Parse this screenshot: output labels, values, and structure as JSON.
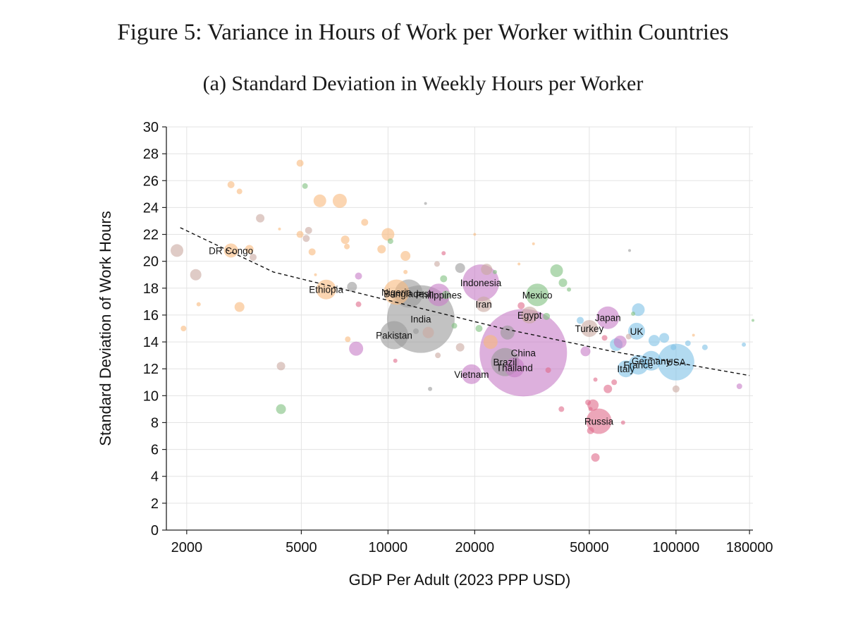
{
  "figure": {
    "title": "Figure 5: Variance in Hours of Work per Worker within Countries",
    "subtitle": "(a) Standard Deviation in Weekly Hours per Worker"
  },
  "colors": {
    "orange": "#f8b97d",
    "green": "#7fbf7f",
    "gray": "#999999",
    "purple": "#c77cc7",
    "pink": "#e06b8b",
    "blue": "#7fc1e6",
    "tan": "#c9a9a0"
  },
  "chart_data": {
    "type": "scatter",
    "xscale": "log",
    "xlabel": "GDP Per Adult (2023 PPP USD)",
    "ylabel": "Standard Deviation of Work Hours",
    "xlim": [
      1700,
      185000
    ],
    "ylim": [
      0,
      30
    ],
    "xticks": [
      2000,
      5000,
      10000,
      20000,
      50000,
      100000,
      180000
    ],
    "yticks": [
      0,
      2,
      4,
      6,
      8,
      10,
      12,
      14,
      16,
      18,
      20,
      22,
      24,
      26,
      28,
      30
    ],
    "grid": true,
    "trendline": {
      "style": "dashed",
      "points": [
        [
          1900,
          22.5
        ],
        [
          4000,
          19.2
        ],
        [
          10000,
          17.1
        ],
        [
          25000,
          15.0
        ],
        [
          60000,
          13.3
        ],
        [
          180000,
          11.5
        ]
      ]
    },
    "points": [
      {
        "x": 2850,
        "y": 20.8,
        "size": 10,
        "color": "orange",
        "label": "DR Congo"
      },
      {
        "x": 6100,
        "y": 17.9,
        "size": 14,
        "color": "orange",
        "label": "Ethiopia"
      },
      {
        "x": 10700,
        "y": 17.7,
        "size": 18,
        "color": "orange",
        "label": "Nigeria"
      },
      {
        "x": 11800,
        "y": 17.6,
        "size": 20,
        "color": "gray",
        "label": "Bangladesh"
      },
      {
        "x": 15000,
        "y": 17.5,
        "size": 16,
        "color": "purple",
        "label": "Philippines"
      },
      {
        "x": 21000,
        "y": 18.4,
        "size": 26,
        "color": "purple",
        "label": "Indonesia"
      },
      {
        "x": 21500,
        "y": 16.8,
        "size": 11,
        "color": "tan",
        "label": "Iran"
      },
      {
        "x": 13000,
        "y": 15.7,
        "size": 48,
        "color": "gray",
        "label": "India"
      },
      {
        "x": 10500,
        "y": 14.5,
        "size": 20,
        "color": "gray",
        "label": "Pakistan"
      },
      {
        "x": 19500,
        "y": 11.6,
        "size": 14,
        "color": "purple",
        "label": "Vietnam"
      },
      {
        "x": 29500,
        "y": 13.2,
        "size": 62,
        "color": "purple",
        "label": "China"
      },
      {
        "x": 25500,
        "y": 12.5,
        "size": 20,
        "color": "gray",
        "label": "Brazil"
      },
      {
        "x": 27500,
        "y": 12.1,
        "size": 14,
        "color": "purple",
        "label": "Thailand"
      },
      {
        "x": 33000,
        "y": 17.5,
        "size": 16,
        "color": "green",
        "label": "Mexico"
      },
      {
        "x": 31000,
        "y": 16.0,
        "size": 12,
        "color": "tan",
        "label": "Egypt"
      },
      {
        "x": 50000,
        "y": 15.0,
        "size": 12,
        "color": "tan",
        "label": "Turkey"
      },
      {
        "x": 58000,
        "y": 15.8,
        "size": 16,
        "color": "purple",
        "label": "Japan"
      },
      {
        "x": 73000,
        "y": 14.8,
        "size": 12,
        "color": "blue",
        "label": "UK"
      },
      {
        "x": 54000,
        "y": 8.1,
        "size": 18,
        "color": "pink",
        "label": "Russia"
      },
      {
        "x": 67000,
        "y": 12.0,
        "size": 12,
        "color": "blue",
        "label": "Italy"
      },
      {
        "x": 74000,
        "y": 12.3,
        "size": 14,
        "color": "blue",
        "label": "France"
      },
      {
        "x": 82000,
        "y": 12.6,
        "size": 14,
        "color": "blue",
        "label": "Germany"
      },
      {
        "x": 100000,
        "y": 12.5,
        "size": 26,
        "color": "blue",
        "label": "USA"
      },
      {
        "x": 1850,
        "y": 20.8,
        "size": 9,
        "color": "tan"
      },
      {
        "x": 2150,
        "y": 19.0,
        "size": 8,
        "color": "tan"
      },
      {
        "x": 2200,
        "y": 16.8,
        "size": 3,
        "color": "orange"
      },
      {
        "x": 1950,
        "y": 15.0,
        "size": 4,
        "color": "orange"
      },
      {
        "x": 2850,
        "y": 25.7,
        "size": 5,
        "color": "orange"
      },
      {
        "x": 3050,
        "y": 25.2,
        "size": 4,
        "color": "orange"
      },
      {
        "x": 3600,
        "y": 23.2,
        "size": 6,
        "color": "tan"
      },
      {
        "x": 3300,
        "y": 20.9,
        "size": 6,
        "color": "orange"
      },
      {
        "x": 3400,
        "y": 20.3,
        "size": 5,
        "color": "tan"
      },
      {
        "x": 3050,
        "y": 16.6,
        "size": 7,
        "color": "orange"
      },
      {
        "x": 4200,
        "y": 22.4,
        "size": 2,
        "color": "orange"
      },
      {
        "x": 4250,
        "y": 12.2,
        "size": 6,
        "color": "tan"
      },
      {
        "x": 4250,
        "y": 9.0,
        "size": 7,
        "color": "green"
      },
      {
        "x": 4950,
        "y": 27.3,
        "size": 5,
        "color": "orange"
      },
      {
        "x": 5150,
        "y": 25.6,
        "size": 4,
        "color": "green"
      },
      {
        "x": 5800,
        "y": 24.5,
        "size": 9,
        "color": "orange"
      },
      {
        "x": 6800,
        "y": 24.5,
        "size": 10,
        "color": "orange"
      },
      {
        "x": 4950,
        "y": 22.0,
        "size": 5,
        "color": "orange"
      },
      {
        "x": 5300,
        "y": 22.3,
        "size": 5,
        "color": "tan"
      },
      {
        "x": 5200,
        "y": 21.7,
        "size": 5,
        "color": "tan"
      },
      {
        "x": 5450,
        "y": 20.7,
        "size": 5,
        "color": "orange"
      },
      {
        "x": 5600,
        "y": 19.0,
        "size": 2,
        "color": "orange"
      },
      {
        "x": 7100,
        "y": 21.6,
        "size": 6,
        "color": "orange"
      },
      {
        "x": 7200,
        "y": 21.1,
        "size": 4,
        "color": "orange"
      },
      {
        "x": 7500,
        "y": 18.1,
        "size": 7,
        "color": "gray"
      },
      {
        "x": 7250,
        "y": 14.2,
        "size": 4,
        "color": "orange"
      },
      {
        "x": 7750,
        "y": 13.5,
        "size": 10,
        "color": "purple"
      },
      {
        "x": 7900,
        "y": 18.9,
        "size": 5,
        "color": "purple"
      },
      {
        "x": 7900,
        "y": 16.8,
        "size": 4,
        "color": "pink"
      },
      {
        "x": 8300,
        "y": 22.9,
        "size": 5,
        "color": "orange"
      },
      {
        "x": 9500,
        "y": 20.9,
        "size": 6,
        "color": "orange"
      },
      {
        "x": 10000,
        "y": 22.0,
        "size": 9,
        "color": "orange"
      },
      {
        "x": 10200,
        "y": 21.5,
        "size": 4,
        "color": "green"
      },
      {
        "x": 11500,
        "y": 20.4,
        "size": 7,
        "color": "orange"
      },
      {
        "x": 11500,
        "y": 19.2,
        "size": 3,
        "color": "orange"
      },
      {
        "x": 10600,
        "y": 12.6,
        "size": 3,
        "color": "pink"
      },
      {
        "x": 12500,
        "y": 14.8,
        "size": 4,
        "color": "gray"
      },
      {
        "x": 13500,
        "y": 24.3,
        "size": 2,
        "color": "gray"
      },
      {
        "x": 13800,
        "y": 14.7,
        "size": 8,
        "color": "tan"
      },
      {
        "x": 14000,
        "y": 10.5,
        "size": 3,
        "color": "gray"
      },
      {
        "x": 14800,
        "y": 19.8,
        "size": 4,
        "color": "tan"
      },
      {
        "x": 14900,
        "y": 13.0,
        "size": 4,
        "color": "tan"
      },
      {
        "x": 15600,
        "y": 18.7,
        "size": 5,
        "color": "green"
      },
      {
        "x": 15600,
        "y": 20.6,
        "size": 3,
        "color": "pink"
      },
      {
        "x": 15900,
        "y": 17.5,
        "size": 6,
        "color": "green"
      },
      {
        "x": 17000,
        "y": 15.2,
        "size": 4,
        "color": "green"
      },
      {
        "x": 17800,
        "y": 19.5,
        "size": 7,
        "color": "gray"
      },
      {
        "x": 17800,
        "y": 13.6,
        "size": 6,
        "color": "tan"
      },
      {
        "x": 20000,
        "y": 22.0,
        "size": 2,
        "color": "orange"
      },
      {
        "x": 20700,
        "y": 15.0,
        "size": 5,
        "color": "green"
      },
      {
        "x": 22000,
        "y": 19.4,
        "size": 8,
        "color": "tan"
      },
      {
        "x": 22700,
        "y": 14.0,
        "size": 10,
        "color": "orange"
      },
      {
        "x": 23500,
        "y": 19.2,
        "size": 3,
        "color": "green"
      },
      {
        "x": 26000,
        "y": 14.7,
        "size": 10,
        "color": "gray"
      },
      {
        "x": 28500,
        "y": 19.8,
        "size": 2,
        "color": "orange"
      },
      {
        "x": 29000,
        "y": 16.7,
        "size": 5,
        "color": "pink"
      },
      {
        "x": 30000,
        "y": 15.7,
        "size": 4,
        "color": "tan"
      },
      {
        "x": 32000,
        "y": 21.3,
        "size": 2,
        "color": "orange"
      },
      {
        "x": 35500,
        "y": 15.9,
        "size": 5,
        "color": "green"
      },
      {
        "x": 36000,
        "y": 11.9,
        "size": 4,
        "color": "pink"
      },
      {
        "x": 38500,
        "y": 19.3,
        "size": 9,
        "color": "green"
      },
      {
        "x": 40500,
        "y": 18.4,
        "size": 6,
        "color": "green"
      },
      {
        "x": 42500,
        "y": 17.9,
        "size": 3,
        "color": "green"
      },
      {
        "x": 40000,
        "y": 9.0,
        "size": 4,
        "color": "pink"
      },
      {
        "x": 46500,
        "y": 15.6,
        "size": 5,
        "color": "blue"
      },
      {
        "x": 48500,
        "y": 13.3,
        "size": 7,
        "color": "purple"
      },
      {
        "x": 49500,
        "y": 9.5,
        "size": 4,
        "color": "pink"
      },
      {
        "x": 50500,
        "y": 9.0,
        "size": 3,
        "color": "pink"
      },
      {
        "x": 51500,
        "y": 9.3,
        "size": 8,
        "color": "pink"
      },
      {
        "x": 50500,
        "y": 7.4,
        "size": 5,
        "color": "pink"
      },
      {
        "x": 52500,
        "y": 11.2,
        "size": 3,
        "color": "pink"
      },
      {
        "x": 52500,
        "y": 5.4,
        "size": 6,
        "color": "pink"
      },
      {
        "x": 56500,
        "y": 14.3,
        "size": 4,
        "color": "pink"
      },
      {
        "x": 58000,
        "y": 10.5,
        "size": 6,
        "color": "pink"
      },
      {
        "x": 61000,
        "y": 11.0,
        "size": 4,
        "color": "pink"
      },
      {
        "x": 62000,
        "y": 13.8,
        "size": 9,
        "color": "blue"
      },
      {
        "x": 64000,
        "y": 14.0,
        "size": 9,
        "color": "purple"
      },
      {
        "x": 65500,
        "y": 8.0,
        "size": 3,
        "color": "pink"
      },
      {
        "x": 68500,
        "y": 14.4,
        "size": 4,
        "color": "tan"
      },
      {
        "x": 69000,
        "y": 20.8,
        "size": 2,
        "color": "gray"
      },
      {
        "x": 71000,
        "y": 16.1,
        "size": 3,
        "color": "green"
      },
      {
        "x": 74000,
        "y": 16.4,
        "size": 9,
        "color": "blue"
      },
      {
        "x": 84000,
        "y": 14.1,
        "size": 8,
        "color": "blue"
      },
      {
        "x": 91000,
        "y": 14.3,
        "size": 7,
        "color": "blue"
      },
      {
        "x": 98000,
        "y": 13.6,
        "size": 4,
        "color": "blue"
      },
      {
        "x": 100000,
        "y": 10.5,
        "size": 5,
        "color": "tan"
      },
      {
        "x": 110000,
        "y": 13.9,
        "size": 4,
        "color": "blue"
      },
      {
        "x": 115000,
        "y": 14.5,
        "size": 2,
        "color": "orange"
      },
      {
        "x": 126000,
        "y": 13.6,
        "size": 4,
        "color": "blue"
      },
      {
        "x": 166000,
        "y": 10.7,
        "size": 4,
        "color": "purple"
      },
      {
        "x": 172000,
        "y": 13.8,
        "size": 3,
        "color": "blue"
      },
      {
        "x": 185000,
        "y": 15.6,
        "size": 2,
        "color": "green"
      }
    ]
  }
}
